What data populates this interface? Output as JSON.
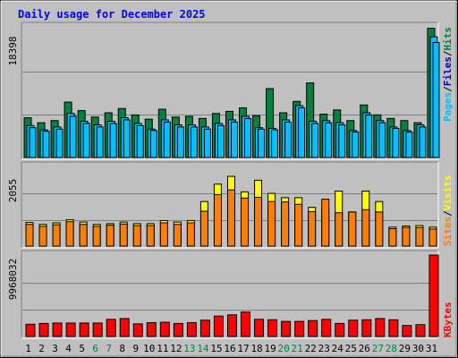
{
  "title": "Daily usage for December 2025",
  "colors": {
    "hits": "#008040",
    "files": "#00c0ff",
    "pages": "#00c0ff",
    "visits": "#ffff00",
    "sites": "#ff8000",
    "kbytes": "#ff0000",
    "background": "#c0c0c0",
    "title": "#0000ff",
    "weekend_day": "#008040"
  },
  "chart_data": [
    {
      "type": "bar",
      "panel": "hits-files-pages",
      "categories": [
        "1",
        "2",
        "3",
        "4",
        "5",
        "6",
        "7",
        "8",
        "9",
        "10",
        "11",
        "12",
        "13",
        "14",
        "15",
        "16",
        "17",
        "18",
        "19",
        "20",
        "21",
        "22",
        "23",
        "24",
        "25",
        "26",
        "27",
        "28",
        "29",
        "30",
        "31"
      ],
      "ymax_label": "18398",
      "ylim": [
        0,
        18398
      ],
      "series": [
        {
          "name": "Hits",
          "values": [
            5600,
            4900,
            5200,
            7800,
            6600,
            5700,
            6300,
            6900,
            6000,
            5400,
            6800,
            5700,
            5800,
            5500,
            6200,
            6500,
            7000,
            5900,
            9700,
            6300,
            7900,
            10500,
            6100,
            6700,
            5200,
            7400,
            6000,
            5500,
            5200,
            4900,
            18200
          ]
        },
        {
          "name": "Files",
          "values": [
            4500,
            3900,
            4300,
            6200,
            5100,
            4600,
            5100,
            5600,
            4800,
            4000,
            5300,
            4600,
            4600,
            4300,
            4800,
            5300,
            5800,
            4200,
            4100,
            5300,
            7300,
            5100,
            5200,
            4900,
            3800,
            6300,
            5200,
            4300,
            3800,
            4600,
            17000
          ]
        },
        {
          "name": "Pages",
          "values": [
            4200,
            3700,
            4000,
            5800,
            4800,
            4300,
            4800,
            5300,
            4500,
            3800,
            5000,
            4300,
            4300,
            4000,
            4500,
            5000,
            5500,
            4000,
            3900,
            5000,
            7000,
            4800,
            4900,
            4600,
            3600,
            6000,
            4900,
            4100,
            3600,
            4300,
            16200
          ]
        }
      ],
      "series_label_colors": [
        "hits",
        "files",
        "pages"
      ]
    },
    {
      "type": "bar",
      "panel": "visits-sites",
      "categories": [
        "1",
        "2",
        "3",
        "4",
        "5",
        "6",
        "7",
        "8",
        "9",
        "10",
        "11",
        "12",
        "13",
        "14",
        "15",
        "16",
        "17",
        "18",
        "19",
        "20",
        "21",
        "22",
        "23",
        "24",
        "25",
        "26",
        "27",
        "28",
        "29",
        "30",
        "31"
      ],
      "ymax_label": "2055",
      "ylim": [
        0,
        2055
      ],
      "series": [
        {
          "name": "Visits",
          "values": [
            610,
            560,
            600,
            680,
            620,
            560,
            580,
            620,
            580,
            580,
            660,
            620,
            660,
            1150,
            1600,
            1800,
            1400,
            1700,
            1360,
            1250,
            1250,
            1000,
            950,
            1420,
            880,
            1420,
            1150,
            490,
            520,
            530,
            490
          ]
        },
        {
          "name": "Sites",
          "values": [
            560,
            510,
            550,
            630,
            560,
            510,
            540,
            570,
            530,
            530,
            600,
            560,
            600,
            900,
            1330,
            1450,
            1240,
            1260,
            1150,
            1140,
            1080,
            890,
            1210,
            860,
            880,
            940,
            880,
            450,
            480,
            480,
            440
          ]
        }
      ],
      "series_label_colors": [
        "sites",
        "visits"
      ]
    },
    {
      "type": "bar",
      "panel": "kbytes",
      "categories": [
        "1",
        "2",
        "3",
        "4",
        "5",
        "6",
        "7",
        "8",
        "9",
        "10",
        "11",
        "12",
        "13",
        "14",
        "15",
        "16",
        "17",
        "18",
        "19",
        "20",
        "21",
        "22",
        "23",
        "24",
        "25",
        "26",
        "27",
        "28",
        "29",
        "30",
        "31"
      ],
      "ymax_label": "9968032",
      "ylim": [
        0,
        9968032
      ],
      "series": [
        {
          "name": "KBytes",
          "values": [
            1500000,
            1600000,
            1650000,
            1650000,
            1650000,
            1650000,
            2100000,
            2200000,
            1550000,
            1700000,
            1750000,
            1600000,
            1700000,
            2000000,
            2500000,
            2650000,
            3000000,
            2100000,
            2050000,
            1850000,
            1850000,
            1950000,
            2100000,
            1600000,
            2000000,
            2050000,
            2200000,
            2050000,
            1350000,
            1450000,
            9968032
          ]
        }
      ],
      "series_label_colors": [
        "kbytes"
      ]
    }
  ],
  "labels": {
    "hits": "Hits",
    "files": "Files",
    "pages": "Pages",
    "visits": "Visits",
    "sites": "Sites",
    "kbytes": "KBytes",
    "sep": "/"
  },
  "weekend_days": [
    "6",
    "7",
    "13",
    "14",
    "20",
    "21",
    "27",
    "28"
  ]
}
